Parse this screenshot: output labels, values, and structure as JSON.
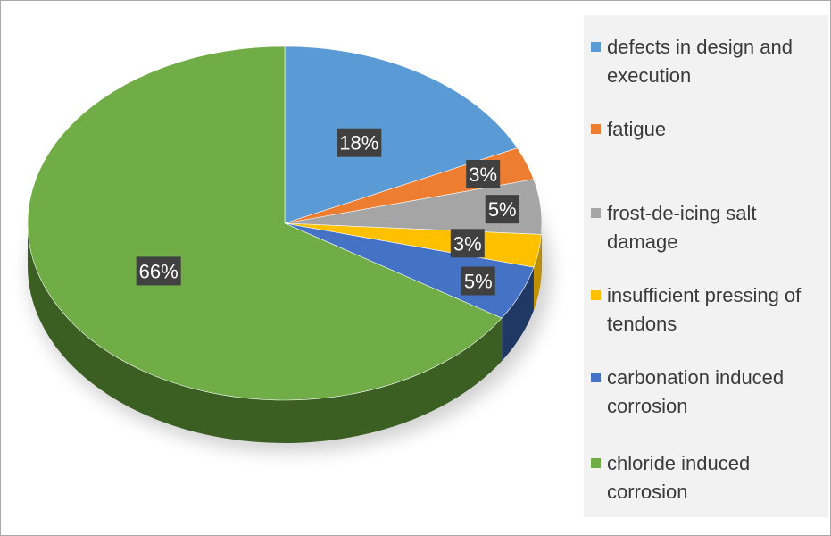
{
  "chart_data": {
    "type": "pie",
    "style": "3d",
    "legend_position": "right",
    "categories": [
      "defects in design and execution",
      "fatigue",
      "frost-de-icing salt damage",
      "insufficient pressing of tendons",
      "carbonation induced corrosion",
      "chloride induced corrosion"
    ],
    "values": [
      18,
      3,
      5,
      3,
      5,
      66
    ],
    "data_labels": [
      "18%",
      "3%",
      "5%",
      "3%",
      "5%",
      "66%"
    ],
    "colors": [
      "#5b9bd5",
      "#ed7d31",
      "#a5a5a5",
      "#ffc000",
      "#4472c4",
      "#70ad47"
    ],
    "side_colors": [
      "#3b6d9c",
      "#b05a20",
      "#777777",
      "#bf9000",
      "#1f3864",
      "#3b5e22"
    ]
  }
}
